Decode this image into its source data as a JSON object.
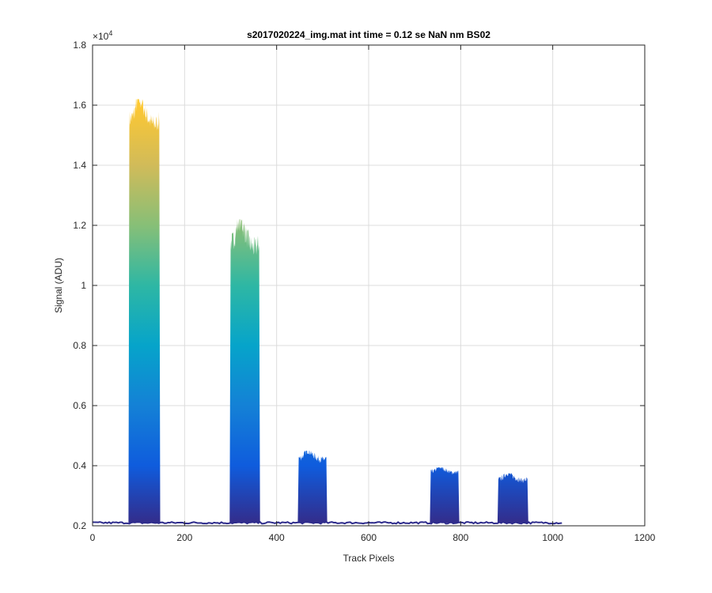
{
  "chart_data": {
    "type": "area",
    "title": "s2017020224_img.mat int time = 0.12 se  NaN nm BS02",
    "xlabel": "Track Pixels",
    "ylabel": "Signal (ADU)",
    "xlim": [
      0,
      1200
    ],
    "ylim": [
      2000,
      18000
    ],
    "xticks": [
      0,
      200,
      400,
      600,
      800,
      1000,
      1200
    ],
    "xtick_labels": [
      "0",
      "200",
      "400",
      "600",
      "800",
      "1000",
      "1200"
    ],
    "yticks": [
      2000,
      4000,
      6000,
      8000,
      10000,
      12000,
      14000,
      16000,
      18000
    ],
    "ytick_labels": [
      "0.2",
      "0.4",
      "0.6",
      "0.8",
      "1",
      "1.2",
      "1.4",
      "1.6",
      "1.8"
    ],
    "y_exponent_label": "×10",
    "y_exponent_power": "4",
    "grid": true,
    "colormap": "parula",
    "baseline": 2100,
    "x_data_end": 1020,
    "peaks": [
      {
        "x_start": 80,
        "x_end": 145,
        "level": 15500,
        "max": 16200
      },
      {
        "x_start": 300,
        "x_end": 362,
        "level": 11400,
        "max": 12200
      },
      {
        "x_start": 448,
        "x_end": 508,
        "level": 4250,
        "max": 4500
      },
      {
        "x_start": 735,
        "x_end": 795,
        "level": 3800,
        "max": 3950
      },
      {
        "x_start": 882,
        "x_end": 945,
        "level": 3550,
        "max": 3750
      }
    ],
    "colors": {
      "baseline": "#2e2c8c",
      "grid": "#dcdcdc",
      "axis": "#262626",
      "parula_stops": [
        "#352a87",
        "#0f5cdd",
        "#1481d6",
        "#06a4ca",
        "#2eb7a4",
        "#87bf77",
        "#d1bb59",
        "#fec832",
        "#f9fb0e"
      ]
    }
  }
}
